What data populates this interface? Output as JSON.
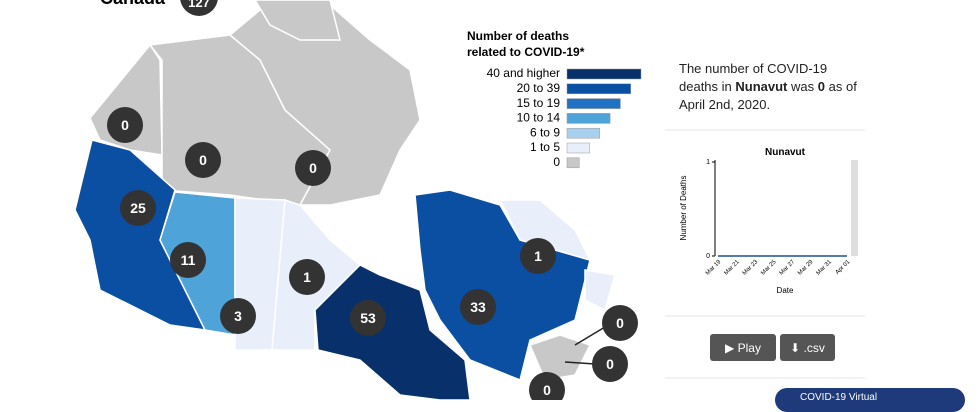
{
  "header": {
    "region": "Canada",
    "total": "127"
  },
  "legend": {
    "title_line1": "Number of deaths",
    "title_line2": "related to COVID-19*",
    "items": [
      {
        "label": "40 and higher",
        "color": "#08306b"
      },
      {
        "label": "20 to 39",
        "color": "#0b4fa3"
      },
      {
        "label": "15 to 19",
        "color": "#2171c4"
      },
      {
        "label": "10 to 14",
        "color": "#4ea3d8"
      },
      {
        "label": "6 to 9",
        "color": "#a8d0ee"
      },
      {
        "label": "1 to 5",
        "color": "#e9eefb"
      },
      {
        "label": "0",
        "color": "#c8c8c8"
      }
    ]
  },
  "regions": [
    {
      "value": "0"
    },
    {
      "value": "0"
    },
    {
      "value": "0"
    },
    {
      "value": "25"
    },
    {
      "value": "11"
    },
    {
      "value": "3"
    },
    {
      "value": "1"
    },
    {
      "value": "53"
    },
    {
      "value": "33"
    },
    {
      "value": "1"
    },
    {
      "value": "0"
    },
    {
      "value": "0"
    },
    {
      "value": "0"
    }
  ],
  "info": {
    "part1": "The number of COVID-19 deaths in",
    "region": "Nunavut",
    "part2": "was",
    "count": "0",
    "part3": "as of April 2nd, 2020."
  },
  "mini_chart": {
    "title": "Nunavut",
    "y_label": "Number of Deaths",
    "x_label": "Date",
    "categories": [
      "Mar 19",
      "Mar 21",
      "Mar 23",
      "Mar 25",
      "Mar 27",
      "Mar 29",
      "Mar 31",
      "Apr 01"
    ],
    "values": [
      0,
      0,
      0,
      0,
      0,
      0,
      0,
      0
    ],
    "ylim": [
      0,
      1
    ],
    "yticks": [
      0,
      1
    ]
  },
  "buttons": {
    "play": "▶ Play",
    "csv": "⬇ .csv"
  },
  "banner": "COVID-19 Virtual"
}
